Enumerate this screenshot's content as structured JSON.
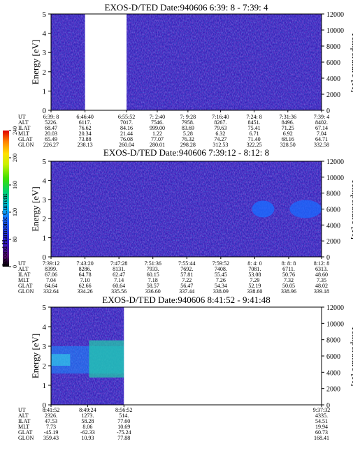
{
  "chart_data": [
    {
      "type": "heatmap",
      "title": "EXOS-D/TED   Date:940606  6:39: 8 - 7:39: 4",
      "ylabel_left": "Energy [eV]",
      "ylabel_right": "Temperature [K]",
      "ylim_left": [
        0,
        5
      ],
      "ylim_right": [
        0,
        12000
      ],
      "yticks_left": [
        "0",
        "1",
        "2",
        "3",
        "4",
        "5"
      ],
      "yticks_right": [
        "0",
        "2000",
        "4000",
        "6000",
        "8000",
        "10000",
        "12000"
      ],
      "data_gaps_ut": [
        [
          "6:46:40",
          "6:55:52"
        ]
      ],
      "orbit_table": {
        "row_labels": [
          "UT",
          "ALT",
          "ILAT",
          "MLT",
          "GLAT",
          "GLON"
        ],
        "columns": [
          [
            "6:39: 8",
            "5226.",
            "68.47",
            "20.03",
            "65.49",
            "226.27"
          ],
          [
            "6:46:40",
            "6117.",
            "76.62",
            "20.34",
            "73.88",
            "238.13"
          ],
          [
            "6:55:52",
            "7017.",
            "84.16",
            "21.44",
            "76.08",
            "260.04"
          ],
          [
            "7: 2:40",
            "7546.",
            "999.00",
            "1.22",
            "77.07",
            "280.01"
          ],
          [
            "7: 9:28",
            "7958.",
            "83.69",
            "5.28",
            "76.32",
            "298.28"
          ],
          [
            "7:16:40",
            "8267.",
            "79.63",
            "6.32",
            "74.27",
            "312.53"
          ],
          [
            "7:24: 8",
            "8451.",
            "75.41",
            "6.71",
            "71.40",
            "322.25"
          ],
          [
            "7:31:36",
            "8496.",
            "71.25",
            "6.92",
            "68.16",
            "328.50"
          ],
          [
            "7:39: 4",
            "8402.",
            "67.14",
            "7.04",
            "64.71",
            "332.58"
          ]
        ]
      }
    },
    {
      "type": "heatmap",
      "title": "EXOS-D/TED   Date:940606  7:39:12 - 8:12: 8",
      "ylabel_left": "Energy [eV]",
      "ylabel_right": "Temperature [K]",
      "ylim_left": [
        0,
        5
      ],
      "ylim_right": [
        0,
        12000
      ],
      "yticks_left": [
        "0",
        "1",
        "2",
        "3",
        "4",
        "5"
      ],
      "yticks_right": [
        "0",
        "2000",
        "4000",
        "6000",
        "8000",
        "10000",
        "12000"
      ],
      "features": [
        "enhanced emission near 2.5 eV after 8:04"
      ],
      "orbit_table": {
        "row_labels": [
          "UT",
          "ALT",
          "ILAT",
          "MLT",
          "GLAT",
          "GLON"
        ],
        "columns": [
          [
            "7:39:12",
            "8399.",
            "67.06",
            "7.04",
            "64.64",
            "332.64"
          ],
          [
            "7:43:20",
            "8286.",
            "64.78",
            "7.10",
            "62.66",
            "334.26"
          ],
          [
            "7:47:28",
            "8131.",
            "62.47",
            "7.14",
            "60.64",
            "335.56"
          ],
          [
            "7:51:36",
            "7933.",
            "60.15",
            "7.18",
            "58.57",
            "336.60"
          ],
          [
            "7:55:44",
            "7692.",
            "57.81",
            "7.22",
            "56.47",
            "337.44"
          ],
          [
            "7:59:52",
            "7408.",
            "55.45",
            "7.26",
            "54.34",
            "338.09"
          ],
          [
            "8: 4: 0",
            "7081.",
            "53.08",
            "7.29",
            "52.19",
            "338.60"
          ],
          [
            "8: 8: 8",
            "6711.",
            "50.76",
            "7.32",
            "50.05",
            "338.96"
          ],
          [
            "8:12: 8",
            "6313.",
            "48.60",
            "7.35",
            "48.02",
            "339.18"
          ]
        ]
      }
    },
    {
      "type": "heatmap",
      "title": "EXOS-D/TED   Date:940606  8:41:52 - 9:41:48",
      "ylabel_left": "Energy [eV]",
      "ylabel_right": "Temperature [K]",
      "ylim_left": [
        0,
        5
      ],
      "ylim_right": [
        0,
        12000
      ],
      "yticks_left": [
        "0",
        "1",
        "2",
        "3",
        "4",
        "5"
      ],
      "yticks_right": [
        "0",
        "2000",
        "4000",
        "6000",
        "8000",
        "10000",
        "12000"
      ],
      "data_gaps_ut": [
        [
          "8:56:52",
          "9:37:32"
        ]
      ],
      "orbit_table": {
        "row_labels": [
          "UT",
          "ALT",
          "ILAT",
          "MLT",
          "GLAT",
          "GLON"
        ],
        "columns": [
          [
            "8:41:52",
            "2326.",
            "47.53",
            "7.73",
            "-45.19",
            "359.43"
          ],
          [
            "8:49:24",
            "1273.",
            "58.28",
            "8.06",
            "-62.33",
            "10.93"
          ],
          [
            "8:56:52",
            "514.",
            "77.60",
            "10.69",
            "-75.24",
            "77.88"
          ],
          [
            "9:37:32",
            "4335.",
            "54.51",
            "19.94",
            "60.73",
            "168.41"
          ]
        ]
      }
    }
  ],
  "colorbar": {
    "label": "Second Harmonic Current",
    "ticks": [
      "0",
      "80",
      "120",
      "160",
      "200",
      "240"
    ],
    "colors": [
      "#000000",
      "#6a0d8a",
      "#2a1fd6",
      "#1a6bff",
      "#00c8e6",
      "#00d070",
      "#40e000",
      "#c8f000",
      "#ffe000",
      "#ff8000",
      "#e00000"
    ]
  }
}
